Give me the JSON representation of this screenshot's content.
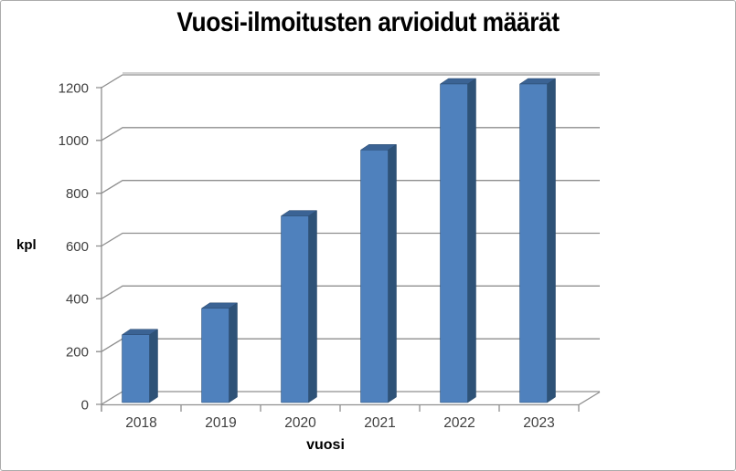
{
  "chart_data": {
    "type": "bar",
    "style": "3d-column",
    "title": "Vuosi-ilmoitusten arvioidut määrät",
    "categories": [
      "2018",
      "2019",
      "2020",
      "2021",
      "2022",
      "2023"
    ],
    "values": [
      250,
      350,
      700,
      950,
      1200,
      1200
    ],
    "xlabel": "vuosi",
    "ylabel": "kpl",
    "ylim": [
      0,
      1200
    ],
    "yticks": [
      0,
      200,
      400,
      600,
      800,
      1000,
      1200
    ],
    "grid": true,
    "legend": false,
    "colors": {
      "bar_front": "#4f81bd",
      "bar_side": "#2e5277",
      "bar_top": "#3b6394",
      "bar_edge": "#2b4a6e",
      "gridline": "#8f8f8f",
      "axis": "#8f8f8f",
      "wall_top_edge": "#c4c4c4",
      "tick_label": "#3f3f3f",
      "title_text": "#000000"
    }
  }
}
